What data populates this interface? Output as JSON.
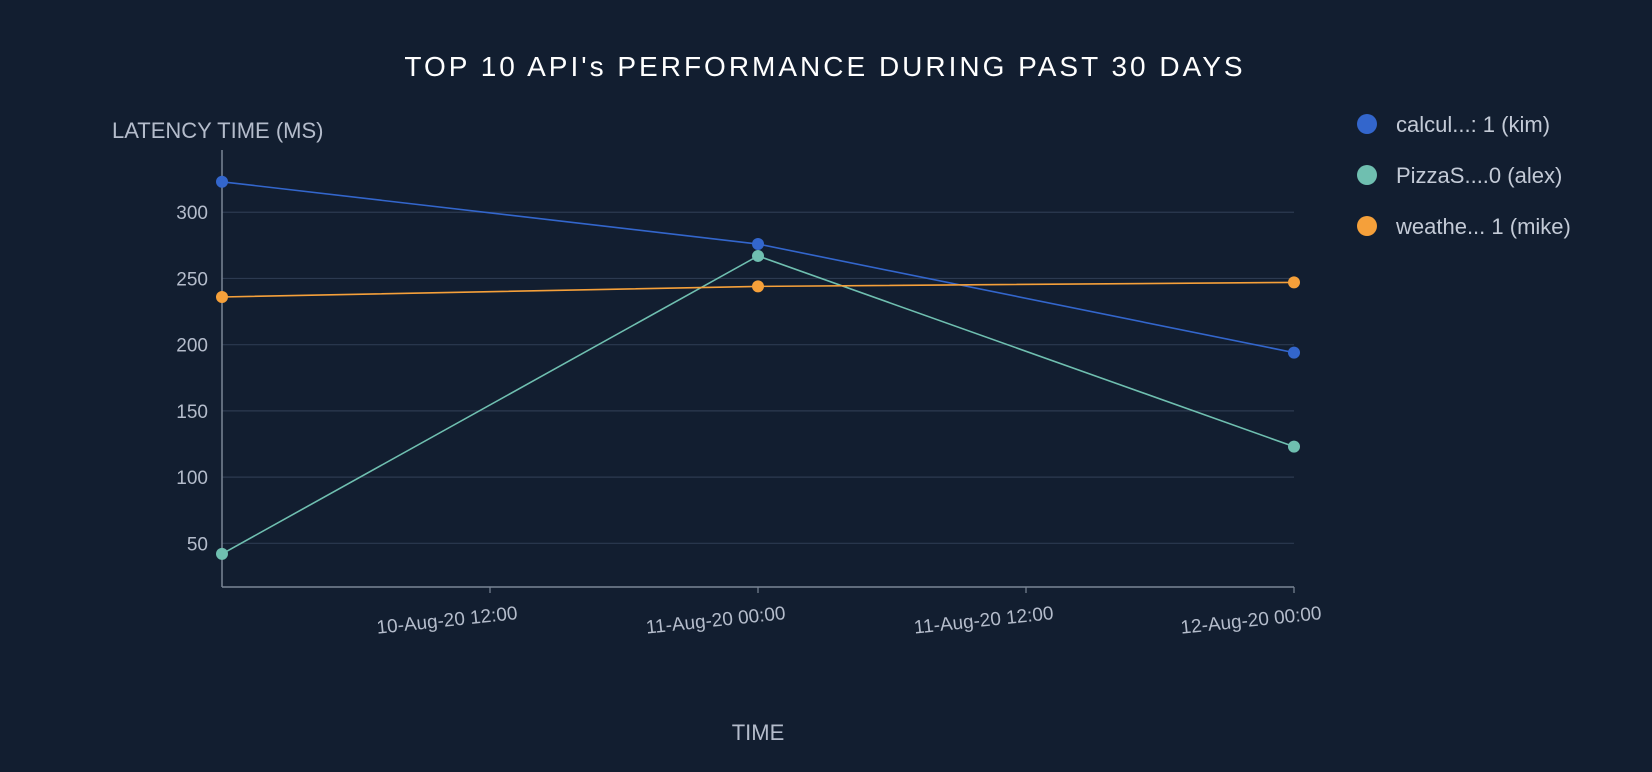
{
  "chart_data": {
    "type": "line",
    "title": "TOP 10 API's PERFORMANCE DURING PAST 30 DAYS",
    "xlabel": "TIME",
    "ylabel": "LATENCY TIME (MS)",
    "x": [
      "2020-08-10 00:00",
      "2020-08-11 00:00",
      "2020-08-12 00:00"
    ],
    "xlim": [
      "2020-08-10 00:00",
      "2020-08-12 00:00"
    ],
    "x_ticks": [
      "10-Aug-20 12:00",
      "11-Aug-20 00:00",
      "11-Aug-20 12:00",
      "12-Aug-20 00:00"
    ],
    "ylim": [
      17,
      347
    ],
    "y_ticks": [
      50,
      100,
      150,
      200,
      250,
      300
    ],
    "grid": true,
    "legend_position": "right",
    "series": [
      {
        "name": "calcul...: 1 (kim)",
        "color": "#3366cc",
        "values": [
          323,
          276,
          194
        ]
      },
      {
        "name": "PizzaS....0 (alex)",
        "color": "#6fbfb0",
        "values": [
          42,
          267,
          123
        ]
      },
      {
        "name": "weathe... 1 (mike)",
        "color": "#f5a03a",
        "values": [
          236,
          244,
          247
        ]
      }
    ]
  }
}
